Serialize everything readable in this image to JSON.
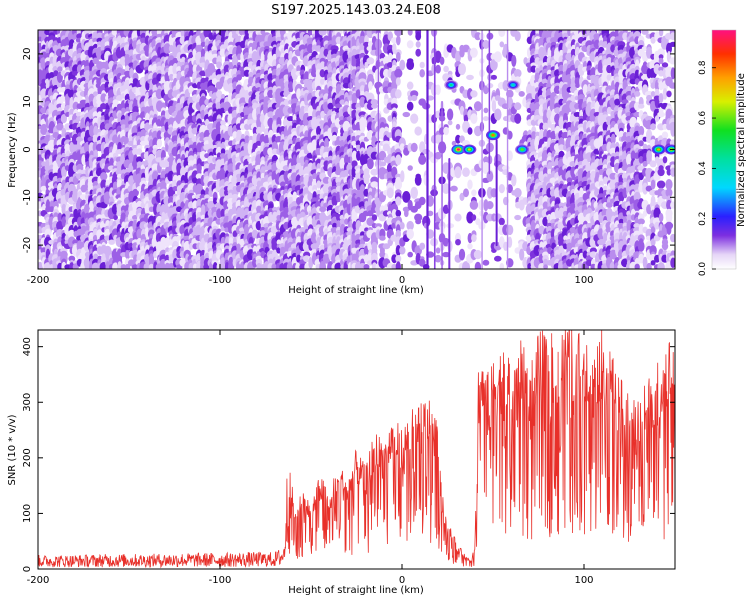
{
  "title": "S197.2025.143.03.24.E08",
  "chart_data": [
    {
      "type": "heatmap",
      "xlabel": "Height of straight line (km)",
      "ylabel": "Frequency (Hz)",
      "xlim": [
        -200,
        150
      ],
      "ylim": [
        -25,
        25
      ],
      "xticks": [
        -200,
        -100,
        0,
        100
      ],
      "yticks": [
        -20,
        -10,
        0,
        10,
        20
      ],
      "colorbar": {
        "label": "Normalized spectral amplitude",
        "range": [
          0,
          0.95
        ],
        "ticks": [
          0.0,
          0.2,
          0.4,
          0.6,
          0.8
        ]
      },
      "features": [
        {
          "x": 27,
          "y": 13.5,
          "amplitude": 0.45
        },
        {
          "x": 31,
          "y": 0,
          "amplitude": 0.95
        },
        {
          "x": 37,
          "y": 0,
          "amplitude": 0.7
        },
        {
          "x": 50,
          "y": 3,
          "amplitude": 0.8
        },
        {
          "x": 61,
          "y": 13.5,
          "amplitude": 0.4
        },
        {
          "x": 66,
          "y": 0,
          "amplitude": 0.6
        },
        {
          "x": 141,
          "y": 0,
          "amplitude": 0.75
        },
        {
          "x": 148,
          "y": 0,
          "amplitude": 0.7
        }
      ]
    },
    {
      "type": "line",
      "xlabel": "Height of straight line (km)",
      "ylabel": "SNR (10 * v/v)",
      "xlim": [
        -200,
        150
      ],
      "ylim": [
        0,
        430
      ],
      "xticks": [
        -200,
        -100,
        0,
        100
      ],
      "yticks": [
        0,
        100,
        200,
        300,
        400
      ],
      "series": [
        {
          "color": "#e8302a",
          "x": [
            -200,
            -180,
            -160,
            -140,
            -120,
            -100,
            -80,
            -70,
            -65,
            -62,
            -58,
            -55,
            -50,
            -45,
            -40,
            -35,
            -30,
            -25,
            -20,
            -15,
            -10,
            -5,
            0,
            5,
            10,
            15,
            20,
            22,
            25,
            28,
            30,
            33,
            35,
            38,
            40,
            42,
            45,
            48,
            50,
            55,
            60,
            65,
            70,
            75,
            80,
            85,
            90,
            95,
            100,
            105,
            110,
            115,
            120,
            125,
            130,
            135,
            140,
            145,
            150
          ],
          "y": [
            15,
            15,
            16,
            16,
            17,
            17,
            18,
            18,
            25,
            160,
            90,
            130,
            100,
            150,
            120,
            170,
            140,
            190,
            160,
            220,
            200,
            240,
            220,
            250,
            260,
            270,
            230,
            120,
            80,
            60,
            40,
            30,
            20,
            15,
            40,
            320,
            340,
            300,
            330,
            350,
            340,
            360,
            330,
            370,
            380,
            360,
            390,
            370,
            380,
            360,
            380,
            340,
            300,
            280,
            270,
            300,
            330,
            360,
            370
          ]
        }
      ]
    }
  ]
}
